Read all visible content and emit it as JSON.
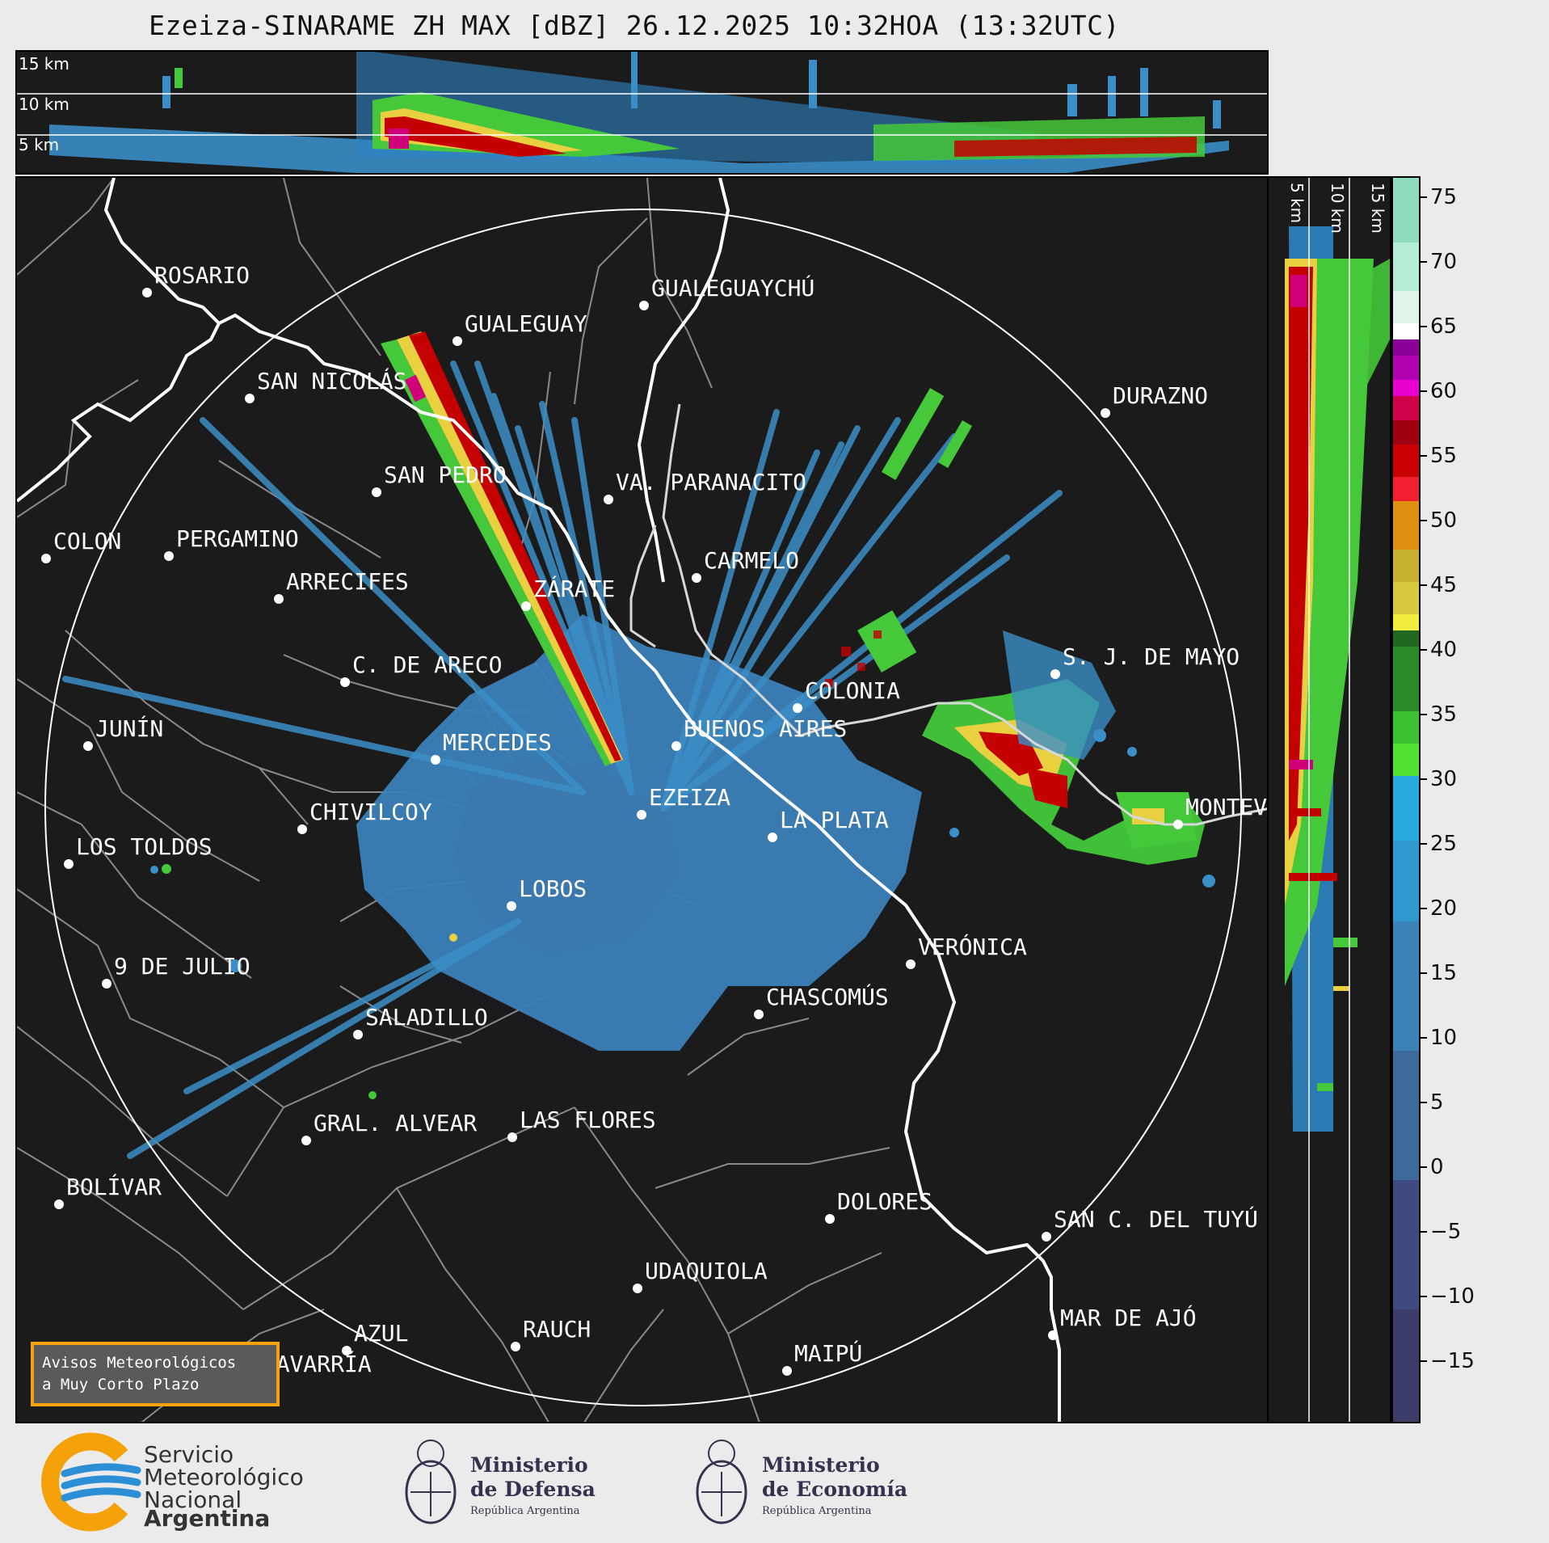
{
  "title": "Ezeiza-SINARAME ZH MAX [dBZ] 26.12.2025 10:32HOA (13:32UTC)",
  "top_panel": {
    "height_labels": [
      "15 km",
      "10 km",
      "5 km"
    ]
  },
  "side_panel": {
    "height_labels": [
      "5 km",
      "10 km",
      "15 km"
    ]
  },
  "colorbar": {
    "unit": "dBZ",
    "min": -20,
    "max": 77,
    "ticks": [
      75,
      70,
      65,
      60,
      55,
      50,
      45,
      40,
      35,
      30,
      25,
      20,
      15,
      10,
      5,
      0,
      -5,
      -10,
      -15
    ],
    "tick_labels": [
      "75",
      "70",
      "65",
      "60",
      "55",
      "50",
      "45",
      "40",
      "35",
      "30",
      "25",
      "20",
      "15",
      "10",
      "5",
      "0",
      "−5",
      "−10",
      "−15"
    ]
  },
  "map": {
    "cities": [
      {
        "name": "ROSARIO"
      },
      {
        "name": "GUALEGUAYCHÚ"
      },
      {
        "name": "GUALEGUAY"
      },
      {
        "name": "SAN NICOLÁS"
      },
      {
        "name": "DURAZNO"
      },
      {
        "name": "SAN PEDRO"
      },
      {
        "name": "VA. PARANACITO"
      },
      {
        "name": "COLON"
      },
      {
        "name": "PERGAMINO"
      },
      {
        "name": "CARMELO"
      },
      {
        "name": "ARRECIFES"
      },
      {
        "name": "ZÁRATE"
      },
      {
        "name": "S. J. DE MAYO"
      },
      {
        "name": "C. DE ARECO"
      },
      {
        "name": "COLONIA"
      },
      {
        "name": "JUNÍN"
      },
      {
        "name": "BUENOS AIRES"
      },
      {
        "name": "MERCEDES"
      },
      {
        "name": "MONTEV"
      },
      {
        "name": "EZEIZA"
      },
      {
        "name": "CHIVILCOY"
      },
      {
        "name": "LA PLATA"
      },
      {
        "name": "LOS TOLDOS"
      },
      {
        "name": "LOBOS"
      },
      {
        "name": "VERÓNICA"
      },
      {
        "name": "9 DE JULIO"
      },
      {
        "name": "CHASCOMÚS"
      },
      {
        "name": "SALADILLO"
      },
      {
        "name": "GRAL. ALVEAR"
      },
      {
        "name": "LAS FLORES"
      },
      {
        "name": "BOLÍVAR"
      },
      {
        "name": "DOLORES"
      },
      {
        "name": "SAN C. DEL TUYÚ"
      },
      {
        "name": "UDAQUIOLA"
      },
      {
        "name": "MAR DE AJÓ"
      },
      {
        "name": "AZUL"
      },
      {
        "name": "RAUCH"
      },
      {
        "name": "MAIPÚ"
      },
      {
        "name": "OLAVARRÍA"
      }
    ]
  },
  "warning_button": {
    "line1": "Avisos Meteorológicos",
    "line2": "a Muy Corto Plazo"
  },
  "footer": {
    "smn": {
      "line1": "Servicio",
      "line2": "Meteorológico",
      "line3": "Nacional",
      "line4": "Argentina"
    },
    "defensa": {
      "line1": "Ministerio",
      "line2": "de Defensa",
      "line3": "República Argentina"
    },
    "economia": {
      "line1": "Ministerio",
      "line2": "de Economía",
      "line3": "República Argentina"
    }
  },
  "colors": {
    "background": "#1b1b1b",
    "coast": "#ffffff",
    "borders": "#8a8a8a",
    "range_ring": "#ffffff",
    "warning_border": "#f5a20a",
    "smn_orange": "#f5a20a",
    "smn_blue": "#2c8fd6"
  }
}
